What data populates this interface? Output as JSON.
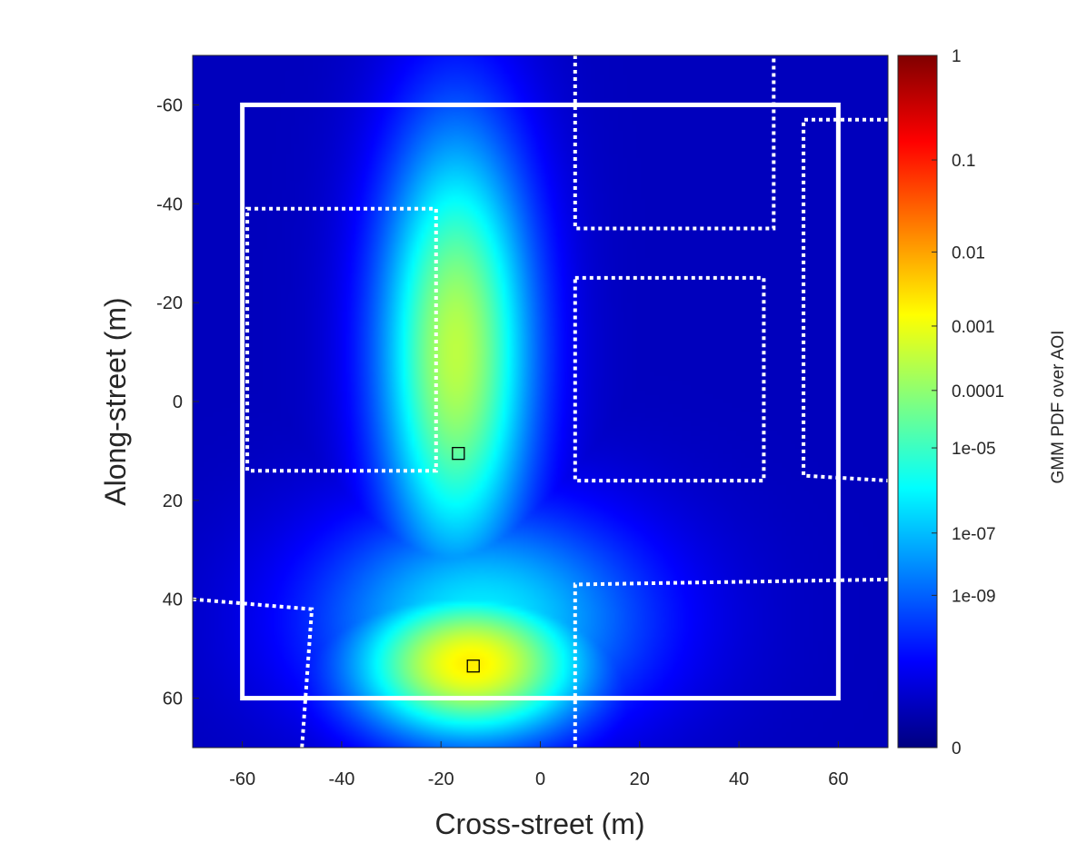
{
  "chart_data": {
    "type": "heatmap",
    "title": "",
    "xlabel": "Cross-street (m)",
    "ylabel": "Along-street (m)",
    "xlim": [
      -70,
      70
    ],
    "ylim": [
      -70,
      70
    ],
    "y_reversed": true,
    "x_ticks": [
      -60,
      -40,
      -20,
      0,
      20,
      40,
      60
    ],
    "y_ticks": [
      -60,
      -40,
      -20,
      0,
      20,
      40,
      60
    ],
    "grid": false,
    "colorbar": {
      "label": "GMM PDF over AOI",
      "scale": "log",
      "colormap": "jet",
      "range": [
        0,
        1
      ],
      "ticks": [
        {
          "value": "1",
          "frac": 1.0
        },
        {
          "value": "0.1",
          "frac": 0.849
        },
        {
          "value": "0.01",
          "frac": 0.716
        },
        {
          "value": "0.001",
          "frac": 0.609
        },
        {
          "value": "0.0001",
          "frac": 0.516
        },
        {
          "value": "1e-05",
          "frac": 0.433
        },
        {
          "value": "1e-07",
          "frac": 0.31
        },
        {
          "value": "1e-09",
          "frac": 0.22
        },
        {
          "value": "0",
          "frac": 0.0
        }
      ]
    },
    "density_components": [
      {
        "cx": -17,
        "cy": -10,
        "sx": 11,
        "sy": 32,
        "level": 0.56
      },
      {
        "cx": -14,
        "cy": 53,
        "sx": 17,
        "sy": 11,
        "level": 0.64
      },
      {
        "cx": -12,
        "cy": 44,
        "sx": 24,
        "sy": 16,
        "level": 0.36
      }
    ],
    "aoi_boundary": {
      "x": [
        -60,
        60
      ],
      "y": [
        -60,
        60
      ],
      "style": "solid-white"
    },
    "building_outlines": [
      {
        "style": "dotted-white",
        "points": [
          [
            -59,
            -39
          ],
          [
            -21,
            -39
          ],
          [
            -21,
            14
          ],
          [
            -59,
            14
          ]
        ],
        "closed": true
      },
      {
        "style": "dotted-white",
        "points": [
          [
            7,
            -70
          ],
          [
            7,
            -35
          ],
          [
            47,
            -35
          ],
          [
            47,
            -70
          ]
        ],
        "closed": false
      },
      {
        "style": "dotted-white",
        "points": [
          [
            7,
            -25
          ],
          [
            45,
            -25
          ],
          [
            45,
            16
          ],
          [
            7,
            16
          ]
        ],
        "closed": true
      },
      {
        "style": "dotted-white",
        "points": [
          [
            70,
            -57
          ],
          [
            53,
            -57
          ],
          [
            53,
            15
          ],
          [
            70,
            16
          ]
        ],
        "closed": false
      },
      {
        "style": "dotted-white",
        "points": [
          [
            70,
            36
          ],
          [
            7,
            37
          ],
          [
            7,
            70
          ]
        ],
        "closed": false
      },
      {
        "style": "dotted-white",
        "points": [
          [
            -70,
            40
          ],
          [
            -46,
            42
          ],
          [
            -48,
            70
          ]
        ],
        "closed": false
      }
    ],
    "markers": [
      {
        "x": -16.5,
        "y": 10.5,
        "shape": "square"
      },
      {
        "x": -13.5,
        "y": 53.5,
        "shape": "square"
      }
    ]
  }
}
